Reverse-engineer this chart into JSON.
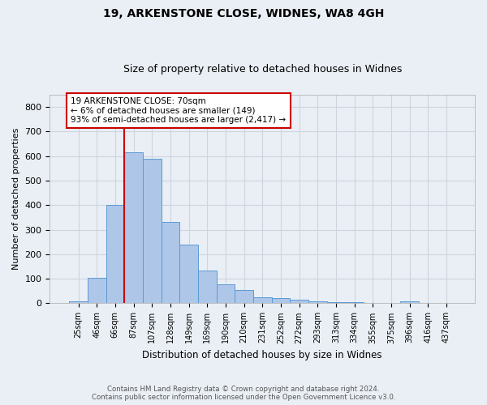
{
  "title1": "19, ARKENSTONE CLOSE, WIDNES, WA8 4GH",
  "title2": "Size of property relative to detached houses in Widnes",
  "xlabel": "Distribution of detached houses by size in Widnes",
  "ylabel": "Number of detached properties",
  "categories": [
    "25sqm",
    "46sqm",
    "66sqm",
    "87sqm",
    "107sqm",
    "128sqm",
    "149sqm",
    "169sqm",
    "190sqm",
    "210sqm",
    "231sqm",
    "252sqm",
    "272sqm",
    "293sqm",
    "313sqm",
    "334sqm",
    "355sqm",
    "375sqm",
    "396sqm",
    "416sqm",
    "437sqm"
  ],
  "values": [
    8,
    105,
    400,
    615,
    590,
    330,
    238,
    135,
    78,
    53,
    25,
    20,
    15,
    8,
    5,
    4,
    0,
    0,
    8,
    0,
    0
  ],
  "bar_color": "#aec6e8",
  "bar_edge_color": "#5b9bd5",
  "grid_color": "#cdd5e0",
  "background_color": "#eaeff5",
  "vline_color": "#cc0000",
  "annotation_text": "19 ARKENSTONE CLOSE: 70sqm\n← 6% of detached houses are smaller (149)\n93% of semi-detached houses are larger (2,417) →",
  "annotation_box_color": "#ffffff",
  "annotation_box_edge": "#cc0000",
  "yticks": [
    0,
    100,
    200,
    300,
    400,
    500,
    600,
    700,
    800
  ],
  "ylim": [
    0,
    850
  ],
  "footnote": "Contains HM Land Registry data © Crown copyright and database right 2024.\nContains public sector information licensed under the Open Government Licence v3.0."
}
